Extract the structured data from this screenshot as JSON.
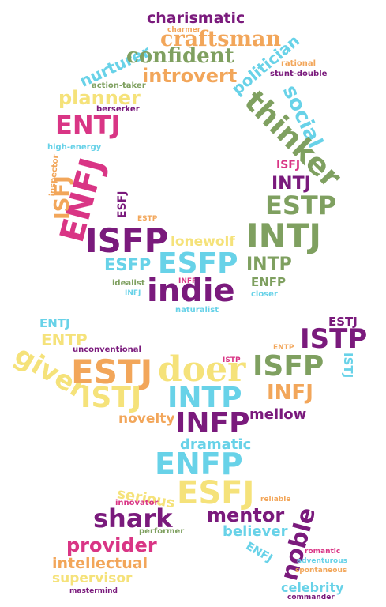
{
  "palette": {
    "purple": "#7a1a7c",
    "magenta": "#d93585",
    "green": "#7fa060",
    "orange": "#f2a65a",
    "cyan": "#68d2e8",
    "yellow": "#f5e27a"
  },
  "words": {
    "charismatic": "charismatic",
    "charmer": "charmer",
    "craftsman": "craftsman",
    "nurturer": "nurturer",
    "confident": "confident",
    "politician": "politician",
    "rational": "rational",
    "introvert": "introvert",
    "stunt_double": "stunt-double",
    "action_taker": "action-taker",
    "planner": "planner",
    "social": "social",
    "berserker": "berserker",
    "thinker": "thinker",
    "entj_top": "ENTJ",
    "high_energy": "high-energy",
    "enfj_big": "ENFJ",
    "inspector": "inspector",
    "isfj_left": "ISFJ",
    "isfj_right": "ISFJ",
    "intj_small": "INTJ",
    "esfj_small": "ESFJ",
    "estp_right": "ESTP",
    "estp_tiny": "ESTP",
    "isfp_big": "ISFP",
    "lonewolf": "lonewolf",
    "intj_big": "INTJ",
    "esfp_small": "ESFP",
    "esfp_big": "ESFP",
    "intp_mid": "INTP",
    "idealist": "idealist",
    "infp_tiny": "INFP",
    "enfp_small": "ENFP",
    "infj_tiny": "INFJ",
    "indie": "indie",
    "closer": "closer",
    "naturalist": "naturalist",
    "entj_bottom": "ENTJ",
    "estj_right": "ESTJ",
    "entp_left": "ENTP",
    "istp_big": "ISTP",
    "giver": "giver",
    "unconventional": "unconventional",
    "istp_tiny": "ISTP",
    "entp_tiny": "ENTP",
    "istj_right": "ISTJ",
    "estj_big": "ESTJ",
    "doer": "doer",
    "isfp_mid": "ISFP",
    "istj_big": "ISTJ",
    "intp_big": "INTP",
    "infj_mid": "INFJ",
    "novelty": "novelty",
    "infp_big": "INFP",
    "mellow": "mellow",
    "dramatic": "dramatic",
    "enfp_big": "ENFP",
    "serious": "serious",
    "esfj_big": "ESFJ",
    "innovator": "innovator",
    "reliable": "reliable",
    "shark": "shark",
    "mentor": "mentor",
    "performer": "performer",
    "believer": "believer",
    "provider": "provider",
    "noble": "noble",
    "enfj_small": "ENFJ",
    "romantic": "romantic",
    "adventurous": "adventurous",
    "intellectual": "intellectual",
    "spontaneous": "spontaneous",
    "supervisor": "supervisor",
    "celebrity": "celebrity",
    "mastermind": "mastermind",
    "commander": "commander"
  }
}
